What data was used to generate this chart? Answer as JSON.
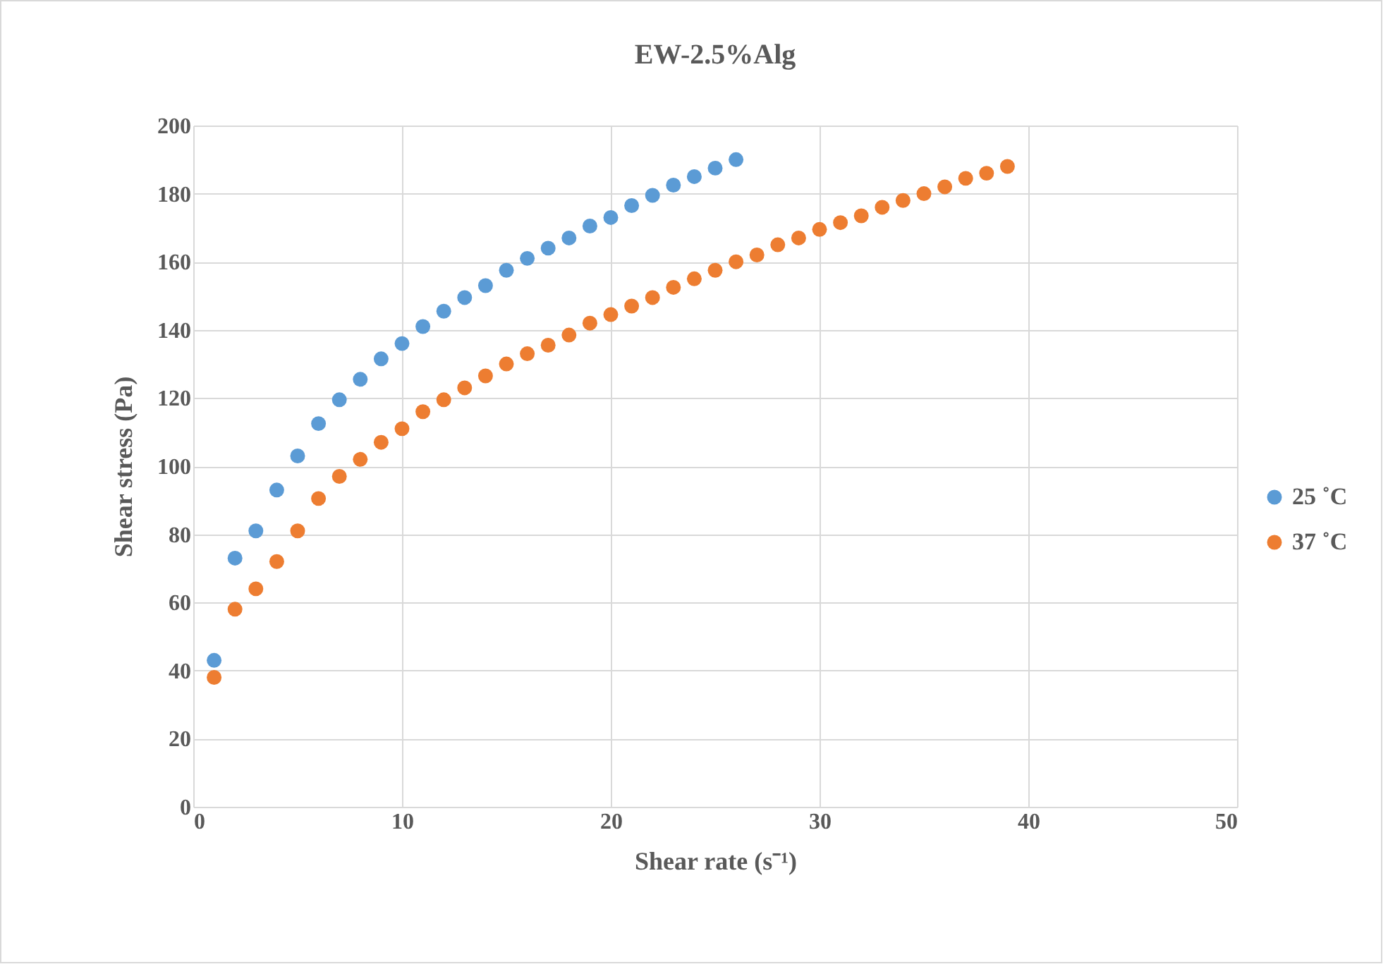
{
  "chart_data": {
    "type": "scatter",
    "title": "EW-2.5%Alg",
    "xlabel": "Shear rate (s⁻¹)",
    "ylabel": "Shear stress (Pa)",
    "xlim": [
      0,
      50
    ],
    "xticks": [
      0,
      10,
      20,
      30,
      40,
      50
    ],
    "ylim": [
      0,
      200
    ],
    "yticks": [
      0,
      20,
      40,
      60,
      80,
      100,
      120,
      140,
      160,
      180,
      200
    ],
    "grid": true,
    "legend": "right",
    "marker": "circle",
    "series": [
      {
        "name": "25 ˚C",
        "color": "#5b9bd5",
        "x": [
          1,
          2,
          3,
          4,
          5,
          6,
          7,
          8,
          9,
          10,
          11,
          12,
          13,
          14,
          15,
          16,
          17,
          18,
          19,
          20,
          21,
          22,
          23,
          24,
          25,
          26
        ],
        "values": [
          43,
          73,
          81,
          93,
          103,
          112.5,
          119.5,
          125.5,
          131.5,
          136,
          141,
          145.5,
          149.5,
          153,
          157.5,
          161,
          164,
          167,
          170.5,
          173,
          176.5,
          179.5,
          182.5,
          185,
          187.5,
          190
        ]
      },
      {
        "name": "37 ˚C",
        "color": "#ed7d31",
        "x": [
          1,
          2,
          3,
          4,
          5,
          6,
          7,
          8,
          9,
          10,
          11,
          12,
          13,
          14,
          15,
          16,
          17,
          18,
          19,
          20,
          21,
          22,
          23,
          24,
          25,
          26,
          27,
          28,
          29,
          30,
          31,
          32,
          33,
          34,
          35,
          36,
          37,
          38,
          39
        ],
        "values": [
          38,
          58,
          64,
          72,
          81,
          90.5,
          97,
          102,
          107,
          111,
          116,
          119.5,
          123,
          126.5,
          130,
          133,
          135.5,
          138.5,
          142,
          144.5,
          147,
          149.5,
          152.5,
          155,
          157.5,
          160,
          162,
          165,
          167,
          169.5,
          171.5,
          173.5,
          176,
          178,
          180,
          182,
          184.5,
          186,
          188
        ]
      }
    ]
  }
}
